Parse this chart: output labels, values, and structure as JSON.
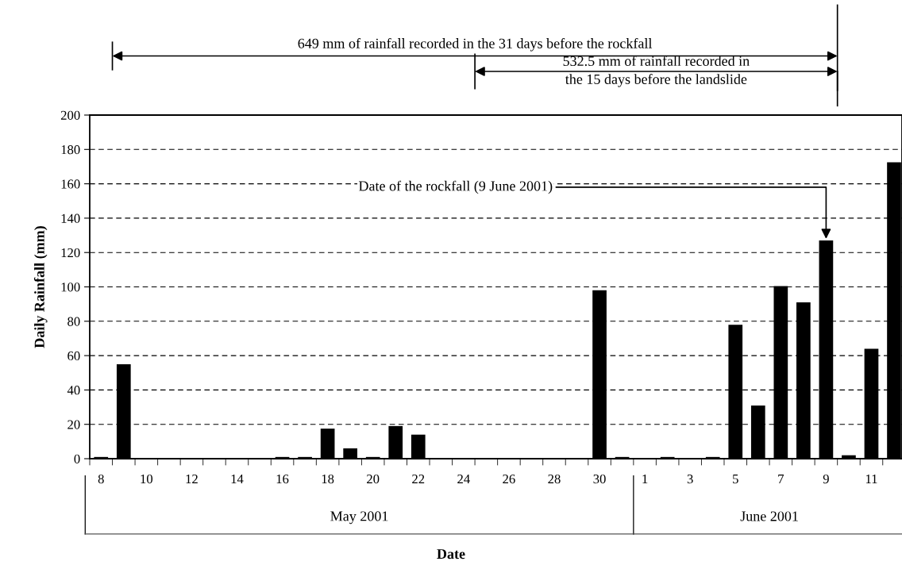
{
  "chart_data": {
    "type": "bar",
    "xlabel": "Date",
    "ylabel": "Daily Rainfall (mm)",
    "categories": [
      "8",
      null,
      "10",
      null,
      "12",
      null,
      "14",
      null,
      "16",
      null,
      "18",
      null,
      "20",
      null,
      "22",
      null,
      "24",
      null,
      "26",
      null,
      "28",
      null,
      "30",
      null,
      "1",
      null,
      "3",
      null,
      "5",
      null,
      "7",
      null,
      "9",
      null,
      "11",
      null
    ],
    "values": [
      1,
      55,
      0,
      0,
      0,
      0,
      0,
      0,
      1,
      1,
      17.5,
      6,
      1,
      19,
      14,
      0,
      0,
      0,
      0,
      0,
      0,
      0,
      98,
      1,
      0,
      1,
      0,
      1,
      78,
      31,
      100.5,
      91,
      127,
      2,
      64,
      172.5
    ],
    "color": "#000000",
    "ylim": [
      0,
      200
    ],
    "yticks": [
      0,
      20,
      40,
      60,
      80,
      100,
      120,
      140,
      160,
      180,
      200
    ],
    "grid": "y",
    "annotations": [
      "649 mm of rainfall recorded in the 31 days before the rockfall",
      "532.5 mm of rainfall recorded in\nthe 15 days before the landslide",
      {
        "text": "Date of the rockfall (9 June 2001)",
        "x": "9",
        "y": 127
      },
      "May 2001",
      "June 2001"
    ]
  }
}
